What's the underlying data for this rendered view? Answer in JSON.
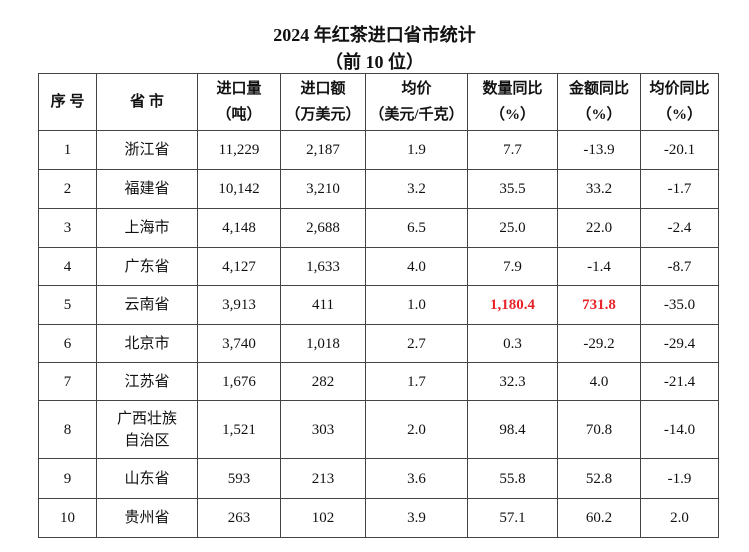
{
  "title": "2024 年红茶进口省市统计",
  "subtitle": "（前 10 位）",
  "table": {
    "header": [
      [
        "序 号"
      ],
      [
        "省 市"
      ],
      [
        "进口量",
        "（吨）"
      ],
      [
        "进口额",
        "（万美元）"
      ],
      [
        "均价",
        "（美元/千克）"
      ],
      [
        "数量同比",
        "（%）"
      ],
      [
        "金额同比",
        "（%）"
      ],
      [
        "均价同比",
        "（%）"
      ]
    ],
    "rows": [
      [
        "1",
        "浙江省",
        "11,229",
        "2,187",
        "1.9",
        "7.7",
        "-13.9",
        "-20.1"
      ],
      [
        "2",
        "福建省",
        "10,142",
        "3,210",
        "3.2",
        "35.5",
        "33.2",
        "-1.7"
      ],
      [
        "3",
        "上海市",
        "4,148",
        "2,688",
        "6.5",
        "25.0",
        "22.0",
        "-2.4"
      ],
      [
        "4",
        "广东省",
        "4,127",
        "1,633",
        "4.0",
        "7.9",
        "-1.4",
        "-8.7"
      ],
      [
        "5",
        "云南省",
        "3,913",
        "411",
        "1.0",
        {
          "text": "1,180.4",
          "color": "#e8242a"
        },
        {
          "text": "731.8",
          "color": "#e8242a"
        },
        "-35.0"
      ],
      [
        "6",
        "北京市",
        "3,740",
        "1,018",
        "2.7",
        "0.3",
        "-29.2",
        "-29.4"
      ],
      [
        "7",
        "江苏省",
        "1,676",
        "282",
        "1.7",
        "32.3",
        "4.0",
        "-21.4"
      ],
      [
        "8",
        "广西壮族自治区",
        "1,521",
        "303",
        "2.0",
        "98.4",
        "70.8",
        "-14.0"
      ],
      [
        "9",
        "山东省",
        "593",
        "213",
        "3.6",
        "55.8",
        "52.8",
        "-1.9"
      ],
      [
        "10",
        "贵州省",
        "263",
        "102",
        "3.9",
        "57.1",
        "60.2",
        "2.0"
      ]
    ]
  }
}
